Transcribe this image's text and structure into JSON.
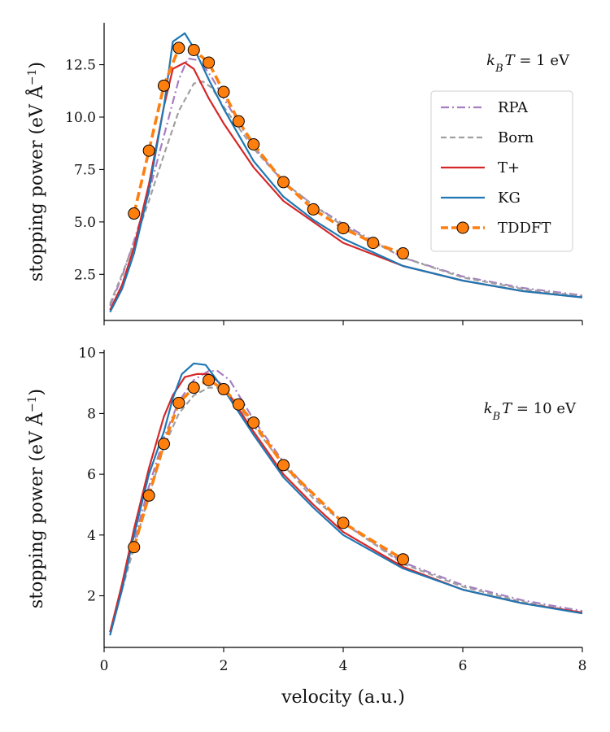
{
  "chart_data": [
    {
      "type": "line",
      "annotation": "k_B T = 1 eV",
      "annotation_parts": {
        "k": "k",
        "sub": "B",
        "rest_italic": "T",
        "rest": " = 1 eV"
      },
      "xlabel": "",
      "ylabel": "stopping power (eV Å⁻¹)",
      "ylabel_parts": {
        "main": "stopping power (eV Å",
        "sup": "−1",
        "close": ")"
      },
      "xlim": [
        0,
        8
      ],
      "ylim": [
        0.3,
        14.5
      ],
      "xticks": [
        0,
        2,
        4,
        6,
        8
      ],
      "yticks": [
        2.5,
        5.0,
        7.5,
        10.0,
        12.5
      ],
      "ytick_labels": [
        "2.5",
        "5.0",
        "7.5",
        "10.0",
        "12.5"
      ],
      "show_xtick_labels": false,
      "legend": {
        "placement": "right",
        "entries": [
          "RPA",
          "Born",
          "T+",
          "KG",
          "TDDFT"
        ]
      },
      "series": [
        {
          "name": "RPA",
          "color": "#a77dc2",
          "style": "dashdot",
          "x": [
            0.1,
            0.3,
            0.5,
            0.75,
            1.0,
            1.25,
            1.4,
            1.6,
            1.8,
            2.0,
            2.5,
            3.0,
            3.5,
            4.0,
            5.0,
            6.0,
            7.0,
            8.0
          ],
          "y": [
            1.0,
            2.4,
            4.1,
            6.4,
            9.1,
            11.8,
            12.8,
            12.7,
            11.9,
            10.9,
            8.6,
            6.9,
            5.8,
            4.9,
            3.3,
            2.4,
            1.85,
            1.5
          ]
        },
        {
          "name": "Born",
          "color": "#a0a0a0",
          "style": "dashed",
          "x": [
            0.1,
            0.3,
            0.5,
            0.75,
            1.0,
            1.25,
            1.5,
            1.65,
            1.8,
            2.0,
            2.5,
            3.0,
            3.5,
            4.0,
            5.0,
            6.0,
            7.0,
            8.0
          ],
          "y": [
            1.1,
            2.5,
            4.0,
            6.0,
            8.2,
            10.3,
            11.6,
            11.7,
            11.4,
            10.5,
            8.5,
            6.9,
            5.8,
            4.8,
            3.3,
            2.35,
            1.8,
            1.45
          ]
        },
        {
          "name": "T+",
          "color": "#d62728",
          "style": "solid",
          "x": [
            0.1,
            0.3,
            0.5,
            0.75,
            1.0,
            1.15,
            1.35,
            1.5,
            1.75,
            2.0,
            2.5,
            3.0,
            3.5,
            4.0,
            5.0,
            6.0,
            7.0,
            8.0
          ],
          "y": [
            0.8,
            2.0,
            3.8,
            6.8,
            10.5,
            12.3,
            12.6,
            12.3,
            10.9,
            9.7,
            7.6,
            6.0,
            5.0,
            4.0,
            2.9,
            2.2,
            1.7,
            1.4
          ]
        },
        {
          "name": "KG",
          "color": "#1f77b4",
          "style": "solid",
          "x": [
            0.1,
            0.3,
            0.5,
            0.75,
            1.0,
            1.15,
            1.35,
            1.5,
            1.75,
            2.0,
            2.5,
            3.0,
            3.5,
            4.0,
            5.0,
            6.0,
            7.0,
            8.0
          ],
          "y": [
            0.7,
            1.8,
            3.5,
            6.5,
            10.5,
            13.6,
            14.0,
            13.3,
            11.8,
            10.4,
            7.9,
            6.2,
            5.1,
            4.2,
            2.9,
            2.2,
            1.7,
            1.4
          ]
        },
        {
          "name": "TDDFT",
          "color": "#ff7f0e",
          "style": "dashed-marker",
          "x": [
            0.5,
            0.75,
            1.0,
            1.25,
            1.5,
            1.75,
            2.0,
            2.25,
            2.5,
            3.0,
            3.5,
            4.0,
            4.5,
            5.0
          ],
          "y": [
            5.4,
            8.4,
            11.5,
            13.3,
            13.2,
            12.6,
            11.2,
            9.8,
            8.7,
            6.9,
            5.6,
            4.7,
            4.0,
            3.5
          ]
        }
      ]
    },
    {
      "type": "line",
      "annotation": "k_B T = 10 eV",
      "annotation_parts": {
        "k": "k",
        "sub": "B",
        "rest_italic": "T",
        "rest": " = 10 eV"
      },
      "xlabel": "velocity (a.u.)",
      "ylabel": "stopping power (eV Å⁻¹)",
      "ylabel_parts": {
        "main": "stopping power (eV Å",
        "sup": "−1",
        "close": ")"
      },
      "xlim": [
        0,
        8
      ],
      "ylim": [
        0.3,
        10.1
      ],
      "xticks": [
        0,
        2,
        4,
        6,
        8
      ],
      "xtick_labels": [
        "0",
        "2",
        "4",
        "6",
        "8"
      ],
      "yticks": [
        2,
        4,
        6,
        8,
        10
      ],
      "ytick_labels": [
        "2",
        "4",
        "6",
        "8",
        "10"
      ],
      "show_xtick_labels": true,
      "series": [
        {
          "name": "RPA",
          "color": "#a77dc2",
          "style": "dashdot",
          "x": [
            0.1,
            0.3,
            0.5,
            0.75,
            1.0,
            1.25,
            1.5,
            1.75,
            1.9,
            2.1,
            2.5,
            3.0,
            3.5,
            4.0,
            5.0,
            6.0,
            7.0,
            8.0
          ],
          "y": [
            0.8,
            2.3,
            3.8,
            5.6,
            7.2,
            8.4,
            9.1,
            9.4,
            9.4,
            9.1,
            7.8,
            6.4,
            5.3,
            4.4,
            3.1,
            2.35,
            1.85,
            1.5
          ]
        },
        {
          "name": "Born",
          "color": "#a0a0a0",
          "style": "dashed",
          "x": [
            0.1,
            0.3,
            0.5,
            0.75,
            1.0,
            1.25,
            1.5,
            1.75,
            1.9,
            2.1,
            2.5,
            3.0,
            3.5,
            4.0,
            5.0,
            6.0,
            7.0,
            8.0
          ],
          "y": [
            0.8,
            2.2,
            3.6,
            5.3,
            6.9,
            8.0,
            8.6,
            8.85,
            8.85,
            8.6,
            7.6,
            6.3,
            5.2,
            4.4,
            3.05,
            2.3,
            1.8,
            1.45
          ]
        },
        {
          "name": "T+",
          "color": "#d62728",
          "style": "solid",
          "x": [
            0.1,
            0.3,
            0.5,
            0.75,
            1.0,
            1.15,
            1.35,
            1.55,
            1.75,
            2.0,
            2.5,
            3.0,
            3.5,
            4.0,
            5.0,
            6.0,
            7.0,
            8.0
          ],
          "y": [
            0.8,
            2.4,
            4.2,
            6.2,
            7.9,
            8.6,
            9.2,
            9.3,
            9.3,
            8.9,
            7.4,
            6.0,
            5.0,
            4.1,
            2.95,
            2.2,
            1.75,
            1.45
          ]
        },
        {
          "name": "KG",
          "color": "#1f77b4",
          "style": "solid",
          "x": [
            0.1,
            0.3,
            0.5,
            0.75,
            1.0,
            1.15,
            1.3,
            1.5,
            1.7,
            2.0,
            2.5,
            3.0,
            3.5,
            4.0,
            5.0,
            6.0,
            7.0,
            8.0
          ],
          "y": [
            0.7,
            2.2,
            4.0,
            6.0,
            7.4,
            8.5,
            9.3,
            9.65,
            9.6,
            8.8,
            7.3,
            5.9,
            4.9,
            4.0,
            2.9,
            2.2,
            1.75,
            1.42
          ]
        },
        {
          "name": "TDDFT",
          "color": "#ff7f0e",
          "style": "dashed-marker",
          "x": [
            0.5,
            0.75,
            1.0,
            1.25,
            1.5,
            1.75,
            2.0,
            2.25,
            2.5,
            3.0,
            4.0,
            5.0
          ],
          "y": [
            3.6,
            5.3,
            7.0,
            8.35,
            8.85,
            9.1,
            8.8,
            8.3,
            7.7,
            6.3,
            4.4,
            3.2
          ]
        }
      ]
    }
  ]
}
